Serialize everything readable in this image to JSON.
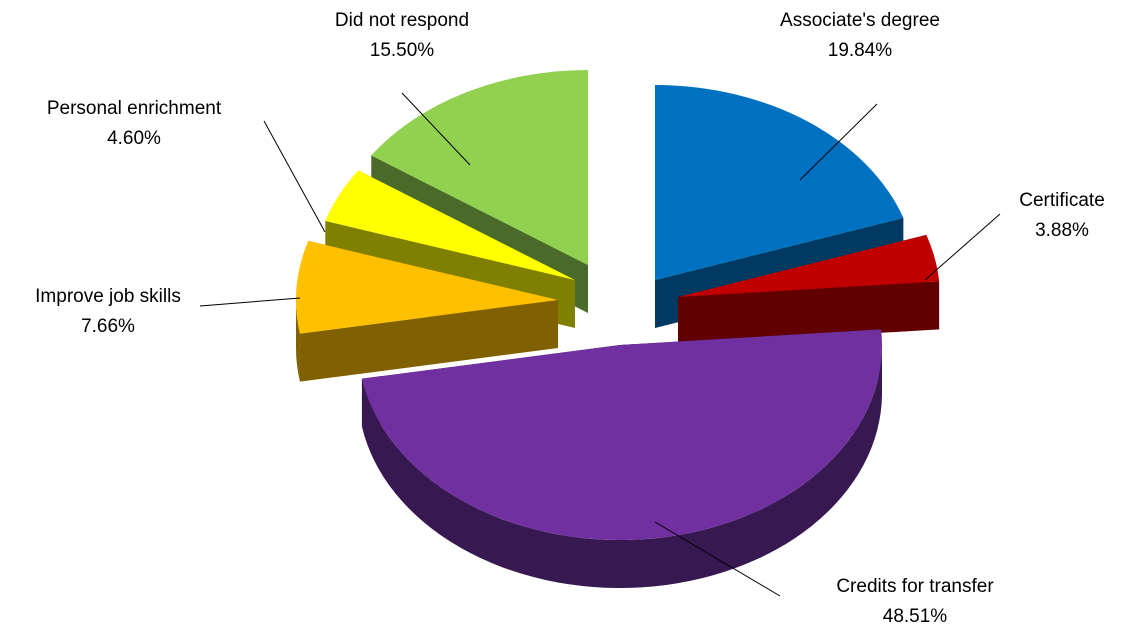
{
  "chart_data": {
    "type": "pie",
    "style": "3d-exploded",
    "title": "",
    "slices": [
      {
        "name": "Associate's degree",
        "value": 19.84,
        "label": "19.84%",
        "color": "#0070c0",
        "side_color": "#003a63"
      },
      {
        "name": "Certificate",
        "value": 3.88,
        "label": "3.88%",
        "color": "#c00000",
        "side_color": "#620000"
      },
      {
        "name": "Credits for transfer",
        "value": 48.51,
        "label": "48.51%",
        "color": "#7030a0",
        "side_color": "#371850"
      },
      {
        "name": "Improve job skills",
        "value": 7.66,
        "label": "7.66%",
        "color": "#ffc000",
        "side_color": "#806000"
      },
      {
        "name": "Personal enrichment",
        "value": 4.6,
        "label": "4.60%",
        "color": "#ffff00",
        "side_color": "#808000"
      },
      {
        "name": "Did not respond",
        "value": 15.5,
        "label": "15.50%",
        "color": "#92d050",
        "side_color": "#496a28"
      }
    ],
    "legend": "none"
  }
}
